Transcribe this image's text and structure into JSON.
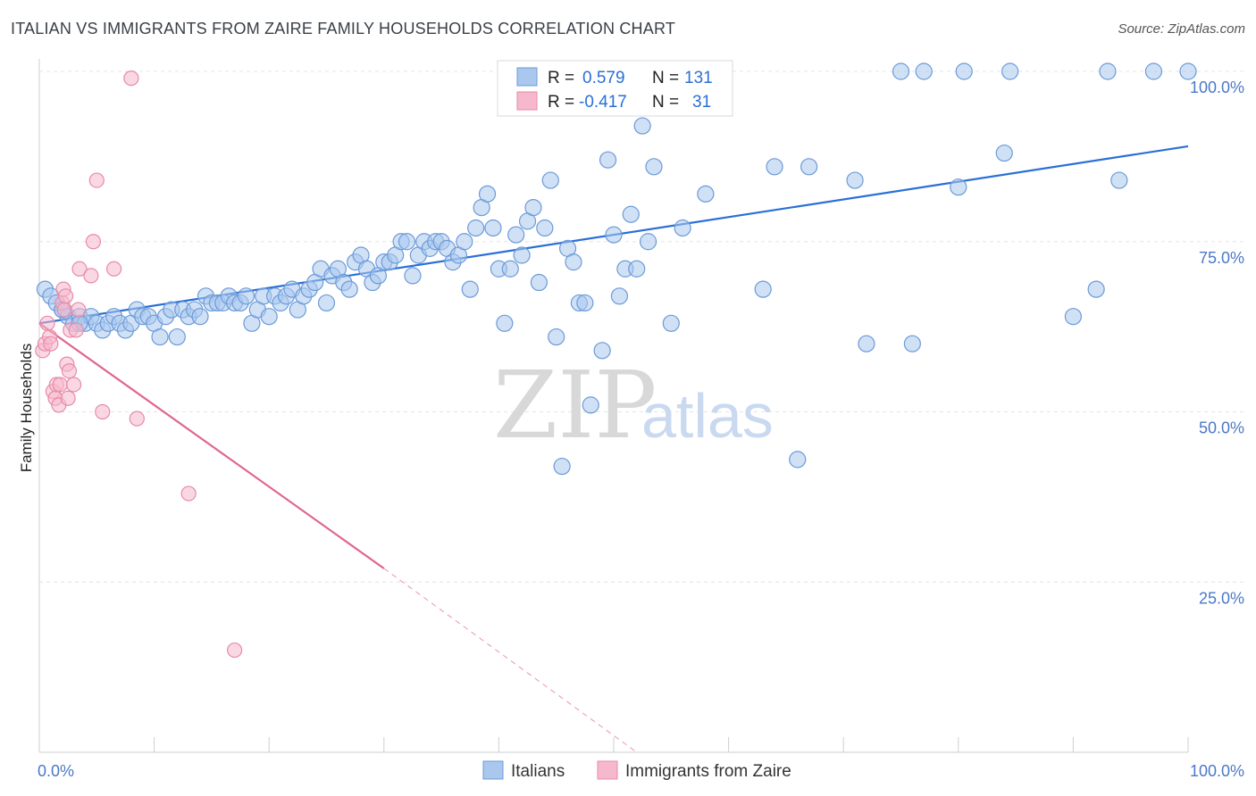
{
  "title": "ITALIAN VS IMMIGRANTS FROM ZAIRE FAMILY HOUSEHOLDS CORRELATION CHART",
  "source": "Source: ZipAtlas.com",
  "watermark": {
    "zip": "ZIP",
    "atlas": "atlas"
  },
  "colors": {
    "blue_fill": "#aac8ee",
    "blue_stroke": "#6b9ad8",
    "blue_line": "#2a6fd6",
    "pink_fill": "#f6b8cc",
    "pink_stroke": "#e88aa8",
    "pink_line": "#e0668f",
    "grid": "#e4e4e4",
    "axis_text": "#4a78c8"
  },
  "legend": {
    "rows": [
      {
        "r_label": "R =",
        "r_value": "0.579",
        "n_label": "N =",
        "n_value": "131",
        "series": "Italians"
      },
      {
        "r_label": "R =",
        "r_value": "-0.417",
        "n_label": "N =",
        "n_value": "31",
        "series": "Immigrants from Zaire"
      }
    ]
  },
  "chart_data": {
    "type": "scatter",
    "title": "ITALIAN VS IMMIGRANTS FROM ZAIRE FAMILY HOUSEHOLDS CORRELATION CHART",
    "xlabel": "",
    "ylabel": "Family Households",
    "xlim": [
      0,
      100
    ],
    "ylim": [
      0,
      100
    ],
    "x_tick_labels": [
      "0.0%",
      "100.0%"
    ],
    "y_ticks": [
      25,
      50,
      75,
      100
    ],
    "y_tick_labels": [
      "25.0%",
      "50.0%",
      "75.0%",
      "100.0%"
    ],
    "grid": true,
    "legend_position": "top-center",
    "series": [
      {
        "name": "Italians",
        "color": "#aac8ee",
        "r": 0.579,
        "n": 131,
        "trend": {
          "x": [
            0,
            100
          ],
          "y": [
            63.0,
            89.0
          ],
          "style": "solid"
        },
        "points": [
          [
            0.5,
            68
          ],
          [
            1.0,
            67
          ],
          [
            1.5,
            66
          ],
          [
            2.0,
            65
          ],
          [
            2.5,
            64
          ],
          [
            3.0,
            63
          ],
          [
            3.5,
            64
          ],
          [
            4.0,
            63
          ],
          [
            4.5,
            64
          ],
          [
            5.0,
            63
          ],
          [
            5.5,
            62
          ],
          [
            6.0,
            63
          ],
          [
            6.5,
            64
          ],
          [
            7.0,
            63
          ],
          [
            7.5,
            62
          ],
          [
            8.0,
            63
          ],
          [
            8.5,
            65
          ],
          [
            9.0,
            64
          ],
          [
            9.5,
            64
          ],
          [
            10.0,
            63
          ],
          [
            10.5,
            61
          ],
          [
            11.0,
            64
          ],
          [
            11.5,
            65
          ],
          [
            12.0,
            61
          ],
          [
            12.5,
            65
          ],
          [
            13.0,
            64
          ],
          [
            13.5,
            65
          ],
          [
            14.0,
            64
          ],
          [
            14.5,
            67
          ],
          [
            15.0,
            66
          ],
          [
            15.5,
            66
          ],
          [
            16.0,
            66
          ],
          [
            16.5,
            67
          ],
          [
            17.0,
            66
          ],
          [
            17.5,
            66
          ],
          [
            18.0,
            67
          ],
          [
            18.5,
            63
          ],
          [
            19.0,
            65
          ],
          [
            19.5,
            67
          ],
          [
            20.0,
            64
          ],
          [
            20.5,
            67
          ],
          [
            21.0,
            66
          ],
          [
            21.5,
            67
          ],
          [
            22.0,
            68
          ],
          [
            22.5,
            65
          ],
          [
            23.0,
            67
          ],
          [
            23.5,
            68
          ],
          [
            24.0,
            69
          ],
          [
            24.5,
            71
          ],
          [
            25.0,
            66
          ],
          [
            25.5,
            70
          ],
          [
            26.0,
            71
          ],
          [
            26.5,
            69
          ],
          [
            27.0,
            68
          ],
          [
            27.5,
            72
          ],
          [
            28.0,
            73
          ],
          [
            28.5,
            71
          ],
          [
            29.0,
            69
          ],
          [
            29.5,
            70
          ],
          [
            30.0,
            72
          ],
          [
            30.5,
            72
          ],
          [
            31.0,
            73
          ],
          [
            31.5,
            75
          ],
          [
            32.0,
            75
          ],
          [
            32.5,
            70
          ],
          [
            33.0,
            73
          ],
          [
            33.5,
            75
          ],
          [
            34.0,
            74
          ],
          [
            34.5,
            75
          ],
          [
            35.0,
            75
          ],
          [
            35.5,
            74
          ],
          [
            36.0,
            72
          ],
          [
            36.5,
            73
          ],
          [
            37.0,
            75
          ],
          [
            37.5,
            68
          ],
          [
            38.0,
            77
          ],
          [
            38.5,
            80
          ],
          [
            39.0,
            82
          ],
          [
            39.5,
            77
          ],
          [
            40.0,
            71
          ],
          [
            40.5,
            63
          ],
          [
            41.0,
            71
          ],
          [
            41.5,
            76
          ],
          [
            42.0,
            73
          ],
          [
            42.5,
            78
          ],
          [
            43.0,
            80
          ],
          [
            43.5,
            69
          ],
          [
            44.0,
            77
          ],
          [
            44.5,
            84
          ],
          [
            45.0,
            61
          ],
          [
            45.5,
            42
          ],
          [
            46.0,
            74
          ],
          [
            46.5,
            72
          ],
          [
            47.0,
            66
          ],
          [
            47.5,
            66
          ],
          [
            48.0,
            51
          ],
          [
            49.0,
            59
          ],
          [
            49.5,
            87
          ],
          [
            50.0,
            76
          ],
          [
            50.5,
            67
          ],
          [
            51.0,
            71
          ],
          [
            51.5,
            79
          ],
          [
            52.0,
            71
          ],
          [
            52.5,
            92
          ],
          [
            53.0,
            75
          ],
          [
            53.5,
            86
          ],
          [
            54.0,
            100
          ],
          [
            55.0,
            63
          ],
          [
            56.0,
            77
          ],
          [
            58.0,
            82
          ],
          [
            63.0,
            68
          ],
          [
            64.0,
            86
          ],
          [
            66.0,
            43
          ],
          [
            67.0,
            86
          ],
          [
            71.0,
            84
          ],
          [
            72.0,
            60
          ],
          [
            75.0,
            100
          ],
          [
            76.0,
            60
          ],
          [
            77.0,
            100
          ],
          [
            80.0,
            83
          ],
          [
            80.5,
            100
          ],
          [
            84.0,
            88
          ],
          [
            84.5,
            100
          ],
          [
            90.0,
            64
          ],
          [
            92.0,
            68
          ],
          [
            93.0,
            100
          ],
          [
            94.0,
            84
          ],
          [
            97.0,
            100
          ],
          [
            100.0,
            100
          ],
          [
            2.0,
            65
          ],
          [
            3.5,
            63
          ]
        ]
      },
      {
        "name": "Immigrants from Zaire",
        "color": "#f6b8cc",
        "r": -0.417,
        "n": 31,
        "trend": {
          "x": [
            0,
            30
          ],
          "y": [
            63.0,
            27.0
          ],
          "style": "solid",
          "extended_to": [
            52,
            0
          ],
          "extended_style": "dashed"
        },
        "points": [
          [
            0.3,
            59
          ],
          [
            0.5,
            60
          ],
          [
            0.7,
            63
          ],
          [
            0.9,
            61
          ],
          [
            1.0,
            60
          ],
          [
            1.2,
            53
          ],
          [
            1.4,
            52
          ],
          [
            1.5,
            54
          ],
          [
            1.7,
            51
          ],
          [
            1.8,
            54
          ],
          [
            2.0,
            66
          ],
          [
            2.1,
            68
          ],
          [
            2.2,
            65
          ],
          [
            2.3,
            67
          ],
          [
            2.4,
            57
          ],
          [
            2.5,
            52
          ],
          [
            2.6,
            56
          ],
          [
            2.7,
            62
          ],
          [
            3.0,
            54
          ],
          [
            3.2,
            62
          ],
          [
            3.4,
            65
          ],
          [
            3.5,
            71
          ],
          [
            4.5,
            70
          ],
          [
            4.7,
            75
          ],
          [
            5.0,
            84
          ],
          [
            5.5,
            50
          ],
          [
            6.5,
            71
          ],
          [
            8.0,
            99
          ],
          [
            8.5,
            49
          ],
          [
            13.0,
            38
          ],
          [
            17.0,
            15
          ]
        ]
      }
    ]
  }
}
